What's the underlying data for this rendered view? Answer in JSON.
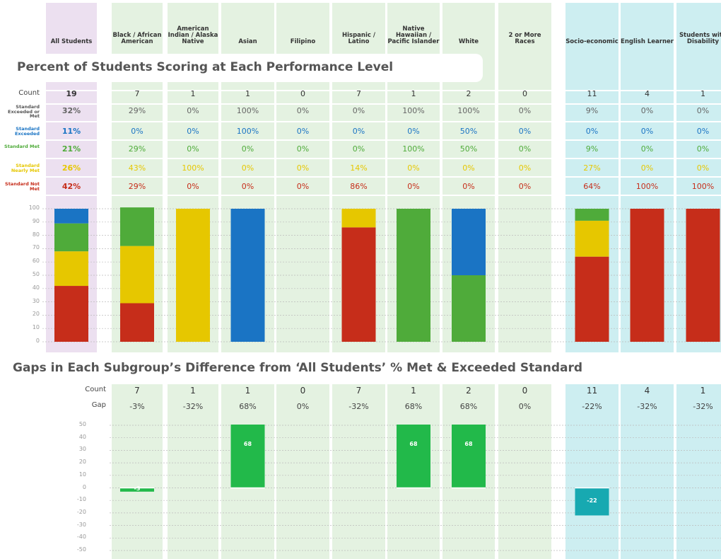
{
  "chart_data": [
    {
      "type": "bar",
      "stacked": true,
      "title": "Percent of Students Scoring at Each Performance Level",
      "categories": [
        "All Students",
        "Black / African American",
        "American Indian / Alaska Native",
        "Asian",
        "Filipino",
        "Hispanic / Latino",
        "Native Hawaiian / Pacific Islander",
        "White",
        "2 or More Races",
        "Socio-economic",
        "English Learner",
        "Students with Disability"
      ],
      "counts_label": "Count",
      "counts": [
        19,
        7,
        1,
        1,
        0,
        7,
        1,
        2,
        0,
        11,
        4,
        1
      ],
      "summary_label": "Standard Exceeded or Met",
      "summary_values": [
        32,
        29,
        0,
        100,
        0,
        0,
        100,
        100,
        0,
        9,
        0,
        0
      ],
      "summary_value_labels": [
        "32%",
        "29%",
        "0%",
        "100%",
        "0%",
        "0%",
        "100%",
        "100%",
        "0%",
        "9%",
        "0%",
        "0%"
      ],
      "series": [
        {
          "name": "Standard Exceeded",
          "color": "#1a74c4",
          "values": [
            11,
            0,
            0,
            100,
            0,
            0,
            0,
            50,
            0,
            0,
            0,
            0
          ],
          "value_labels": [
            "11%",
            "0%",
            "0%",
            "100%",
            "0%",
            "0%",
            "0%",
            "50%",
            "0%",
            "0%",
            "0%",
            "0%"
          ]
        },
        {
          "name": "Standard Met",
          "color": "#4fab3a",
          "values": [
            21,
            29,
            0,
            0,
            0,
            0,
            100,
            50,
            0,
            9,
            0,
            0
          ],
          "value_labels": [
            "21%",
            "29%",
            "0%",
            "0%",
            "0%",
            "0%",
            "100%",
            "50%",
            "0%",
            "9%",
            "0%",
            "0%"
          ]
        },
        {
          "name": "Standard Nearly Met",
          "color": "#e6c700",
          "values": [
            26,
            43,
            100,
            0,
            0,
            14,
            0,
            0,
            0,
            27,
            0,
            0
          ],
          "value_labels": [
            "26%",
            "43%",
            "100%",
            "0%",
            "0%",
            "14%",
            "0%",
            "0%",
            "0%",
            "27%",
            "0%",
            "0%"
          ]
        },
        {
          "name": "Standard Not Met",
          "color": "#c62d1a",
          "values": [
            42,
            29,
            0,
            0,
            0,
            86,
            0,
            0,
            0,
            64,
            100,
            100
          ],
          "value_labels": [
            "42%",
            "29%",
            "0%",
            "0%",
            "0%",
            "86%",
            "0%",
            "0%",
            "0%",
            "64%",
            "100%",
            "100%"
          ]
        }
      ],
      "ylim": [
        0,
        100
      ],
      "yticks": [
        0,
        10,
        20,
        30,
        40,
        50,
        60,
        70,
        80,
        90,
        100
      ],
      "grid": true
    },
    {
      "type": "bar",
      "title": "Gaps in Each Subgroup’s Difference from ‘All Students’ % Met & Exceeded Standard",
      "counts_label": "Count",
      "counts": [
        7,
        1,
        1,
        0,
        7,
        1,
        2,
        0,
        11,
        4,
        1
      ],
      "gap_label": "Gap",
      "gaps": [
        -3,
        -32,
        68,
        0,
        -32,
        68,
        68,
        0,
        -22,
        -32,
        -32
      ],
      "gap_labels": [
        "-3%",
        "-32%",
        "68%",
        "0%",
        "-32%",
        "68%",
        "68%",
        "0%",
        "-22%",
        "-32%",
        "-32%"
      ],
      "series": [
        {
          "colors": [
            "#22b94a",
            null,
            "#22b94a",
            null,
            null,
            "#22b94a",
            "#22b94a",
            null,
            "#17a9b1",
            null,
            null
          ],
          "values": [
            -3,
            null,
            68,
            null,
            null,
            68,
            68,
            null,
            -22,
            null,
            null
          ],
          "value_labels": [
            "-3",
            null,
            "68",
            null,
            null,
            "68",
            "68",
            null,
            "-22",
            null,
            null
          ]
        }
      ],
      "ylim": [
        -50,
        50
      ],
      "yticks": [
        -50,
        -40,
        -30,
        -20,
        -10,
        0,
        10,
        20,
        30,
        40,
        50
      ],
      "grid": true
    }
  ]
}
